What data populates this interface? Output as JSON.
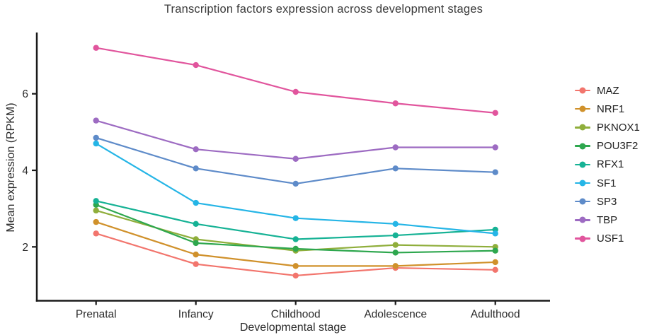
{
  "figure": {
    "title": "Transcription factors expression across development stages",
    "xlabel": "Developmental stage",
    "ylabel": "Mean expression (RPKM)"
  },
  "chart_data": {
    "type": "line",
    "title": "Transcription factors expression across development stages",
    "xlabel": "Developmental stage",
    "ylabel": "Mean expression (RPKM)",
    "categories": [
      "Prenatal",
      "Infancy",
      "Childhood",
      "Adolescence",
      "Adulthood"
    ],
    "yticks": [
      2,
      4,
      6
    ],
    "ylim": [
      0.6,
      7.6
    ],
    "grid": false,
    "legend_position": "right",
    "marker": "circle",
    "series": [
      {
        "name": "MAZ",
        "color": "#F2756D",
        "values": [
          2.35,
          1.55,
          1.25,
          1.45,
          1.4
        ]
      },
      {
        "name": "NRF1",
        "color": "#D0912B",
        "values": [
          2.65,
          1.8,
          1.5,
          1.5,
          1.6
        ]
      },
      {
        "name": "PKNOX1",
        "color": "#8FAE3B",
        "values": [
          2.95,
          2.2,
          1.9,
          2.05,
          2.0
        ]
      },
      {
        "name": "POU3F2",
        "color": "#2EA74E",
        "values": [
          3.1,
          2.1,
          1.95,
          1.85,
          1.9
        ]
      },
      {
        "name": "RFX1",
        "color": "#16B295",
        "values": [
          3.2,
          2.6,
          2.2,
          2.3,
          2.45
        ]
      },
      {
        "name": "SF1",
        "color": "#25B5E6",
        "values": [
          4.7,
          3.15,
          2.75,
          2.6,
          2.35
        ]
      },
      {
        "name": "SP3",
        "color": "#5E8BC9",
        "values": [
          4.85,
          4.05,
          3.65,
          4.05,
          3.95
        ]
      },
      {
        "name": "TBP",
        "color": "#9D6BC2",
        "values": [
          5.3,
          4.55,
          4.3,
          4.6,
          4.6
        ]
      },
      {
        "name": "USF1",
        "color": "#E1559D",
        "values": [
          7.2,
          6.75,
          6.05,
          5.75,
          5.5
        ]
      }
    ],
    "axis_color": "#1a1a1a",
    "tick_label_color": "#2b2b2b"
  }
}
